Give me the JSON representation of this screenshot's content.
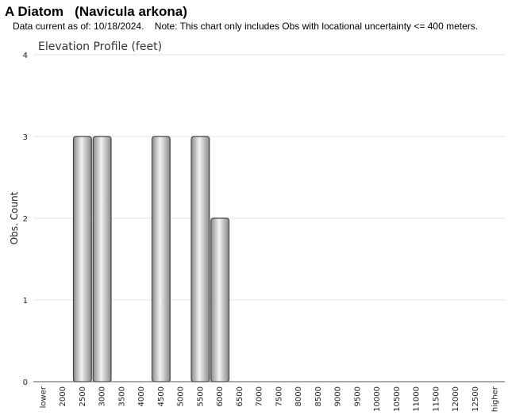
{
  "header": {
    "title": "A Diatom   (Navicula arkona)",
    "subtitle": "Data current as of: 10/18/2024.    Note: This chart only includes Obs with locational uncertainty <= 400 meters."
  },
  "chart_data": {
    "type": "bar",
    "title": "Elevation Profile (feet)",
    "xlabel": "",
    "ylabel": "Obs. Count",
    "ylim": [
      0,
      4
    ],
    "yticks": [
      0,
      1,
      2,
      3,
      4
    ],
    "grid": true,
    "categories": [
      "lower",
      "2000",
      "2500",
      "3000",
      "3500",
      "4000",
      "4500",
      "5000",
      "5500",
      "6000",
      "6500",
      "7000",
      "7500",
      "8000",
      "8500",
      "9000",
      "9500",
      "10000",
      "10500",
      "11000",
      "11500",
      "12000",
      "12500",
      "higher"
    ],
    "values": [
      0,
      0,
      3,
      3,
      0,
      0,
      3,
      0,
      3,
      2,
      0,
      0,
      0,
      0,
      0,
      0,
      0,
      0,
      0,
      0,
      0,
      0,
      0,
      0
    ],
    "colors": {
      "bar_light": "#f2f2f2",
      "bar_dark": "#8a8a8a",
      "bar_edge": "#444444",
      "grid": "#e3e3e3"
    }
  }
}
